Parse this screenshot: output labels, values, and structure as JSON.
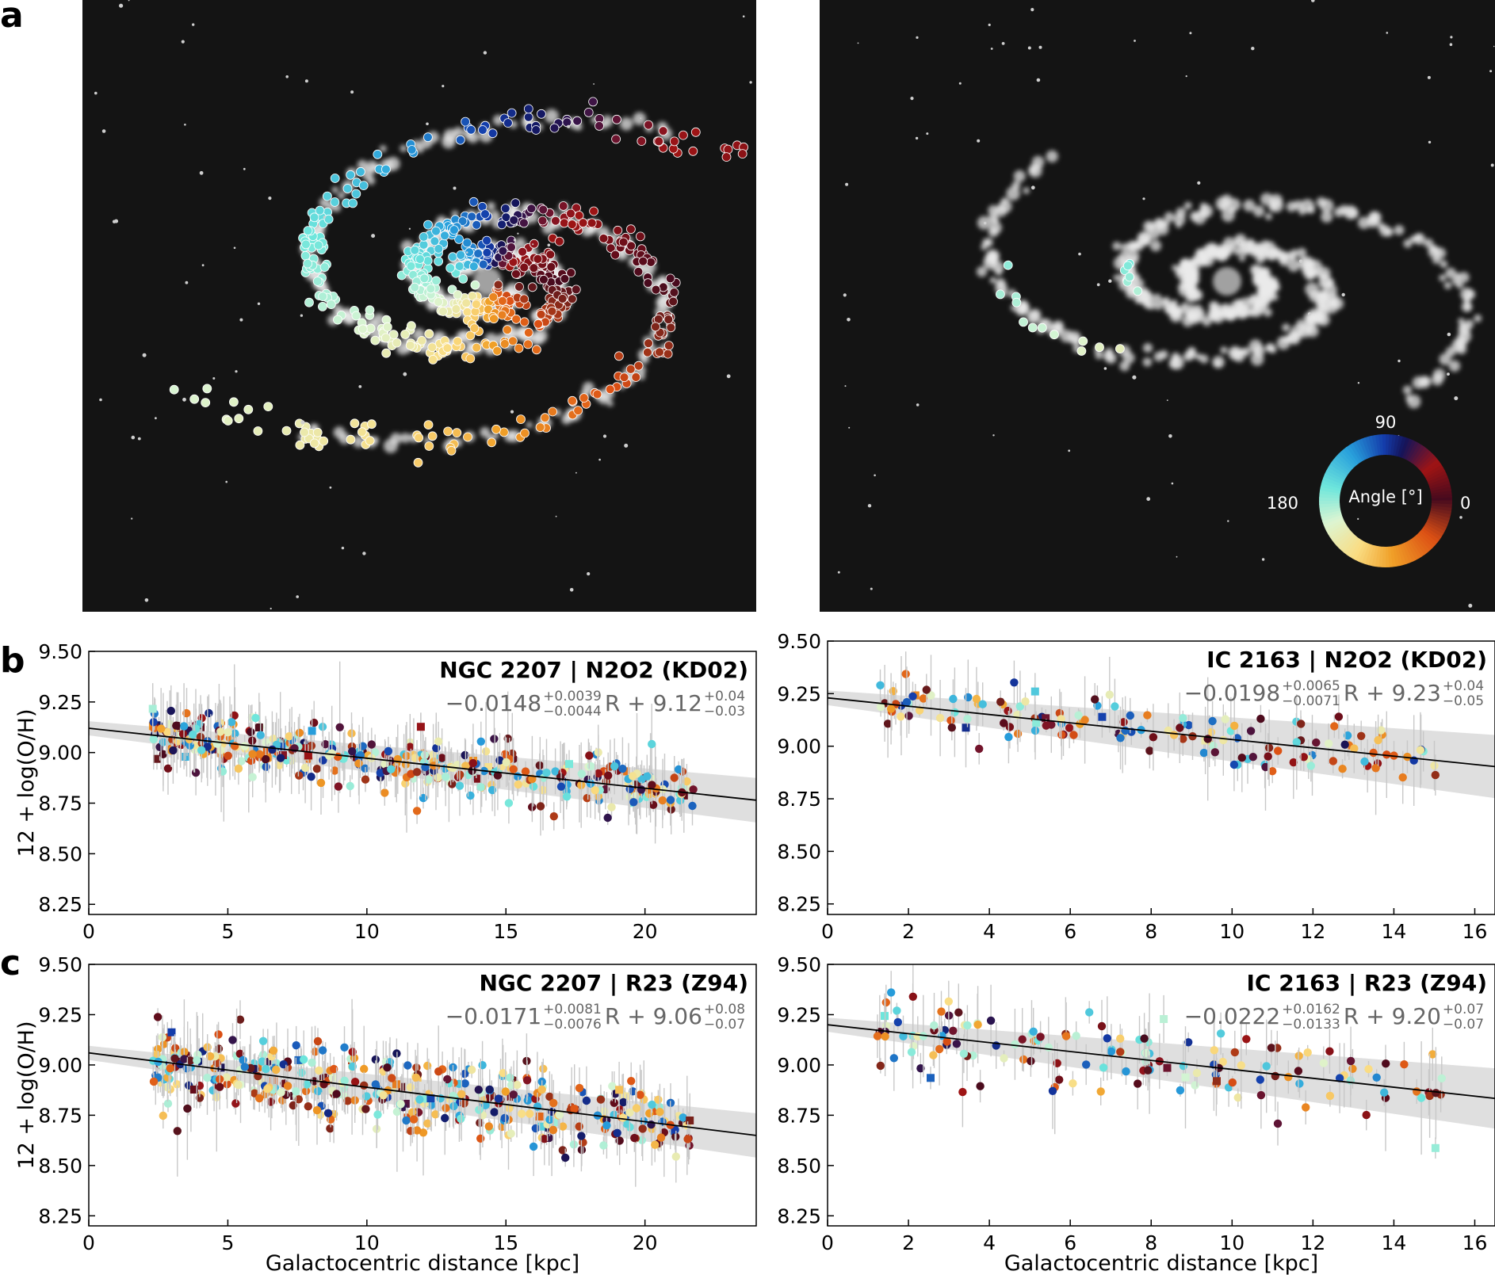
{
  "figure": {
    "panel_labels": [
      "a",
      "b",
      "c"
    ]
  },
  "colorwheel": {
    "center_label": "Angle [°]",
    "tick_labels": [
      "90",
      "180",
      "0"
    ]
  },
  "colors": {
    "axis": "#000000",
    "fit_line": "#000000",
    "fit_band": "#d7d7d7",
    "errorbar": "#c8c8c8",
    "annotation_gray": "#666666",
    "image_background": "#141414"
  },
  "chart_data": [
    {
      "id": "b-left",
      "type": "scatter",
      "title": "NGC 2207 | N2O2 (KD02)",
      "fit_text": {
        "slope": "−0.0148",
        "slope_up": "+0.0039",
        "slope_down": "−0.0044",
        "mid": "R + 9.12",
        "int_up": "+0.04",
        "int_down": "−0.03"
      },
      "fit": {
        "slope": -0.0148,
        "intercept": 9.12
      },
      "xlim": [
        0,
        24
      ],
      "ylim": [
        8.2,
        9.5
      ],
      "xticks": [
        "0",
        "5",
        "10",
        "15",
        "20"
      ],
      "yticks": [
        "8.25",
        "8.50",
        "8.75",
        "9.00",
        "9.25",
        "9.50"
      ],
      "xlabel": "",
      "ylabel": "12 + log(O/H)",
      "n_points": 420,
      "x_range": [
        2.3,
        21.8
      ],
      "scatter_sd": 0.07
    },
    {
      "id": "b-right",
      "type": "scatter",
      "title": "IC 2163 | N2O2 (KD02)",
      "fit_text": {
        "slope": "−0.0198",
        "slope_up": "+0.0065",
        "slope_down": "−0.0071",
        "mid": "R + 9.23",
        "int_up": "+0.04",
        "int_down": "−0.05"
      },
      "fit": {
        "slope": -0.0198,
        "intercept": 9.23
      },
      "xlim": [
        0,
        16.5
      ],
      "ylim": [
        8.2,
        9.5
      ],
      "xticks": [
        "0",
        "2",
        "4",
        "6",
        "8",
        "10",
        "12",
        "14",
        "16"
      ],
      "yticks": [
        "8.25",
        "8.50",
        "8.75",
        "9.00",
        "9.25",
        "9.50"
      ],
      "xlabel": "",
      "ylabel": "",
      "n_points": 150,
      "x_range": [
        1.2,
        15.2
      ],
      "scatter_sd": 0.06
    },
    {
      "id": "c-left",
      "type": "scatter",
      "title": "NGC 2207 | R23 (Z94)",
      "fit_text": {
        "slope": "−0.0171",
        "slope_up": "+0.0081",
        "slope_down": "−0.0076",
        "mid": "R + 9.06",
        "int_up": "+0.08",
        "int_down": "−0.07"
      },
      "fit": {
        "slope": -0.0171,
        "intercept": 9.06
      },
      "xlim": [
        0,
        24
      ],
      "ylim": [
        8.2,
        9.5
      ],
      "xticks": [
        "0",
        "5",
        "10",
        "15",
        "20"
      ],
      "yticks": [
        "8.25",
        "8.50",
        "8.75",
        "9.00",
        "9.25",
        "9.50"
      ],
      "xlabel": "Galactocentric distance [kpc]",
      "ylabel": "12 + log(O/H)",
      "n_points": 420,
      "x_range": [
        2.3,
        21.8
      ],
      "scatter_sd": 0.1
    },
    {
      "id": "c-right",
      "type": "scatter",
      "title": "IC 2163 | R23 (Z94)",
      "fit_text": {
        "slope": "−0.0222",
        "slope_up": "+0.0162",
        "slope_down": "−0.0133",
        "mid": "R + 9.20",
        "int_up": "+0.07",
        "int_down": "−0.07"
      },
      "fit": {
        "slope": -0.0222,
        "intercept": 9.2
      },
      "xlim": [
        0,
        16.5
      ],
      "ylim": [
        8.2,
        9.5
      ],
      "xticks": [
        "0",
        "2",
        "4",
        "6",
        "8",
        "10",
        "12",
        "14",
        "16"
      ],
      "yticks": [
        "8.25",
        "8.50",
        "8.75",
        "9.00",
        "9.25",
        "9.50"
      ],
      "xlabel": "Galactocentric distance [kpc]",
      "ylabel": "",
      "n_points": 150,
      "x_range": [
        1.2,
        15.2
      ],
      "scatter_sd": 0.1
    }
  ]
}
